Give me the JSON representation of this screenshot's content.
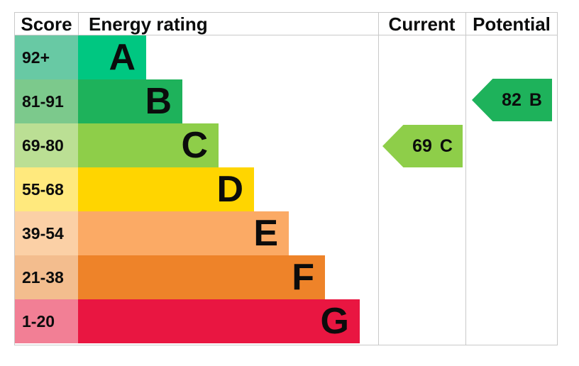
{
  "header": {
    "score": "Score",
    "energy_rating": "Energy rating",
    "current": "Current",
    "potential": "Potential"
  },
  "bands": [
    {
      "score": "92+",
      "letter": "A",
      "bar_color": "#00c781",
      "score_tint": "#68c9a4"
    },
    {
      "score": "81-91",
      "letter": "B",
      "bar_color": "#1eb25b",
      "score_tint": "#7cc98c"
    },
    {
      "score": "69-80",
      "letter": "C",
      "bar_color": "#8ece49",
      "score_tint": "#bbdf94"
    },
    {
      "score": "55-68",
      "letter": "D",
      "bar_color": "#ffd500",
      "score_tint": "#ffe97d"
    },
    {
      "score": "39-54",
      "letter": "E",
      "bar_color": "#fbaa65",
      "score_tint": "#fbd0a6"
    },
    {
      "score": "21-38",
      "letter": "F",
      "bar_color": "#ee8329",
      "score_tint": "#f3bd8e"
    },
    {
      "score": "1-20",
      "letter": "G",
      "bar_color": "#e91641",
      "score_tint": "#f27f95"
    }
  ],
  "current": {
    "value": "69",
    "letter": "C",
    "arrow_color": "#8ece49"
  },
  "potential": {
    "value": "82",
    "letter": "B",
    "arrow_color": "#1eb25b"
  },
  "border_color": "#c9c9c9",
  "chart_data": {
    "type": "bar",
    "title": "Energy rating",
    "categories": [
      "A",
      "B",
      "C",
      "D",
      "E",
      "F",
      "G"
    ],
    "score_ranges": [
      "92+",
      "81-91",
      "69-80",
      "55-68",
      "39-54",
      "21-38",
      "1-20"
    ],
    "band_colors": [
      "#00c781",
      "#1eb25b",
      "#8ece49",
      "#ffd500",
      "#fbaa65",
      "#ee8329",
      "#e91641"
    ],
    "bar_relative_lengths": [
      96,
      147,
      198,
      248,
      297,
      348,
      397
    ],
    "columns": [
      "Score",
      "Energy rating",
      "Current",
      "Potential"
    ],
    "current": {
      "score": 69,
      "band": "C"
    },
    "potential": {
      "score": 82,
      "band": "B"
    },
    "legend_position": "none",
    "grid": false
  }
}
